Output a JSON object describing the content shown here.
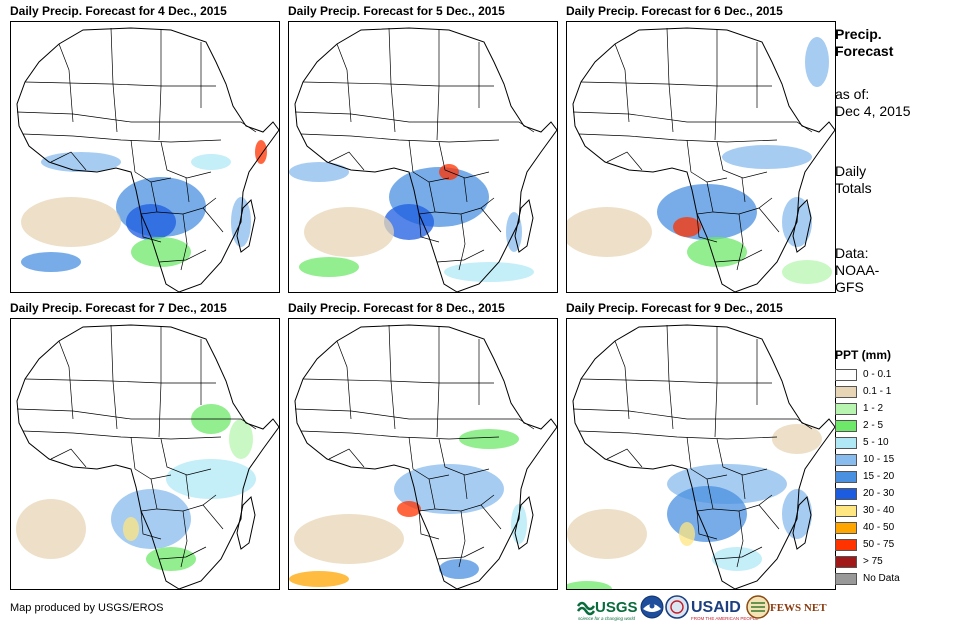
{
  "panels": [
    {
      "title": "Daily Precip. Forecast for 4 Dec., 2015"
    },
    {
      "title": "Daily Precip. Forecast for 5 Dec., 2015"
    },
    {
      "title": "Daily Precip. Forecast for 6 Dec., 2015"
    },
    {
      "title": "Daily Precip. Forecast for 7 Dec., 2015"
    },
    {
      "title": "Daily Precip. Forecast for 8 Dec., 2015"
    },
    {
      "title": "Daily Precip. Forecast for 9 Dec., 2015"
    }
  ],
  "sidebar": {
    "title_line1": "Precip.",
    "title_line2": "Forecast",
    "asof_label": "as of:",
    "asof_date": "Dec 4, 2015",
    "totals_line1": "Daily",
    "totals_line2": "Totals",
    "data_line1": "Data:",
    "data_line2": "NOAA-",
    "data_line3": "GFS"
  },
  "legend": {
    "title": "PPT (mm)",
    "items": [
      {
        "label": "0 - 0.1",
        "color": "#ffffff"
      },
      {
        "label": "0.1 - 1",
        "color": "#e8d5b5"
      },
      {
        "label": "1 - 2",
        "color": "#b8f5b0"
      },
      {
        "label": "2 - 5",
        "color": "#6ee868"
      },
      {
        "label": "5 - 10",
        "color": "#b0e8f5"
      },
      {
        "label": "10 - 15",
        "color": "#88bbee"
      },
      {
        "label": "15 - 20",
        "color": "#4a90e0"
      },
      {
        "label": "20 - 30",
        "color": "#1c5ce0"
      },
      {
        "label": "30 - 40",
        "color": "#ffe680"
      },
      {
        "label": "40 - 50",
        "color": "#ffa500"
      },
      {
        "label": "50 - 75",
        "color": "#ff3300"
      },
      {
        "label": "> 75",
        "color": "#a01818"
      },
      {
        "label": "No Data",
        "color": "#999999"
      }
    ]
  },
  "credit": "Map produced by USGS/EROS",
  "logos": {
    "usgs": "USGS",
    "usgs_tagline": "science for a changing world",
    "usaid": "USAID",
    "usaid_tagline": "FROM THE AMERICAN PEOPLE",
    "fews": "FEWS NET"
  }
}
